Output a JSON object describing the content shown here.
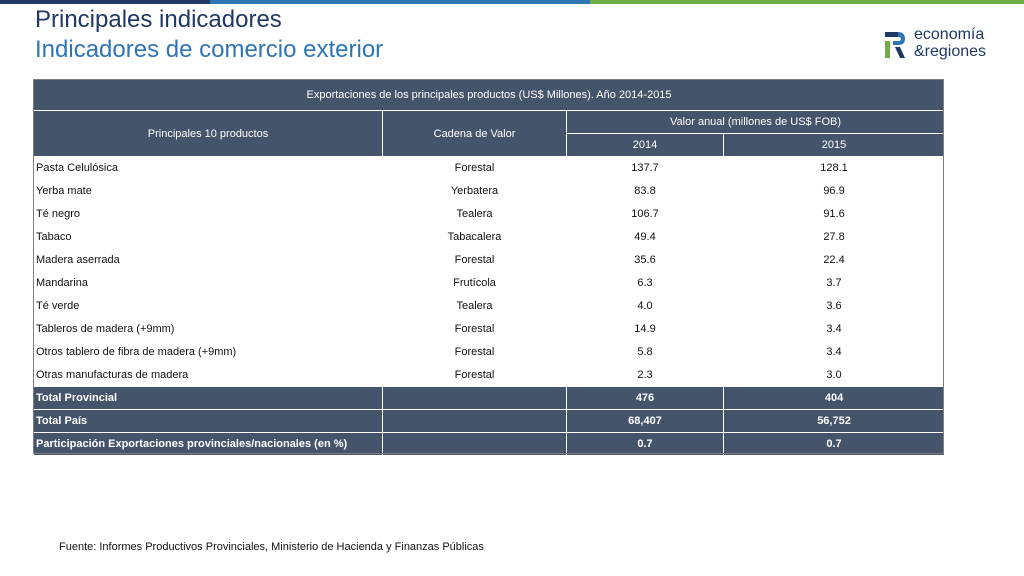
{
  "header": {
    "title": "Principales indicadores",
    "subtitle": "Indicadores de comercio exterior",
    "topbar_colors": [
      "#1f3864",
      "#2e75b6",
      "#5b9bd5",
      "#70ad47"
    ]
  },
  "logo": {
    "line1": "economía",
    "line2": "&regiones",
    "colors": [
      "#1f3864",
      "#70ad47"
    ]
  },
  "table": {
    "caption": "Exportaciones de los principales productos (US$ Millones). Año 2014-2015",
    "col_product": "Principales 10 productos",
    "col_chain": "Cadena de Valor",
    "col_value_group": "Valor anual (millones de US$ FOB)",
    "year_a": "2014",
    "year_b": "2015",
    "rows": [
      {
        "product": "Pasta Celulósica",
        "chain": "Forestal",
        "v2014": "137.7",
        "v2015": "128.1"
      },
      {
        "product": "Yerba mate",
        "chain": "Yerbatera",
        "v2014": "83.8",
        "v2015": "96.9"
      },
      {
        "product": "Té negro",
        "chain": "Tealera",
        "v2014": "106.7",
        "v2015": "91.6"
      },
      {
        "product": "Tabaco",
        "chain": "Tabacalera",
        "v2014": "49.4",
        "v2015": "27.8"
      },
      {
        "product": "Madera aserrada",
        "chain": "Forestal",
        "v2014": "35.6",
        "v2015": "22.4"
      },
      {
        "product": "Mandarina",
        "chain": "Frutícola",
        "v2014": "6.3",
        "v2015": "3.7"
      },
      {
        "product": "Té verde",
        "chain": "Tealera",
        "v2014": "4.0",
        "v2015": "3.6"
      },
      {
        "product": "Tableros de madera (+9mm)",
        "chain": "Forestal",
        "v2014": "14.9",
        "v2015": "3.4"
      },
      {
        "product": "Otros tablero de fibra de madera (+9mm)",
        "chain": "Forestal",
        "v2014": "5.8",
        "v2015": "3.4"
      },
      {
        "product": "Otras manufacturas de madera",
        "chain": "Forestal",
        "v2014": "2.3",
        "v2015": "3.0"
      }
    ],
    "totals": [
      {
        "label": "Total Provincial",
        "v2014": "476",
        "v2015": "404"
      },
      {
        "label": "Total País",
        "v2014": "68,407",
        "v2015": "56,752"
      },
      {
        "label": "Participación Exportaciones provinciales/nacionales (en %)",
        "v2014": "0.7",
        "v2015": "0.7"
      }
    ]
  },
  "footer": {
    "source": "Fuente: Informes Productivos Provinciales, Ministerio de Hacienda y Finanzas Públicas"
  }
}
